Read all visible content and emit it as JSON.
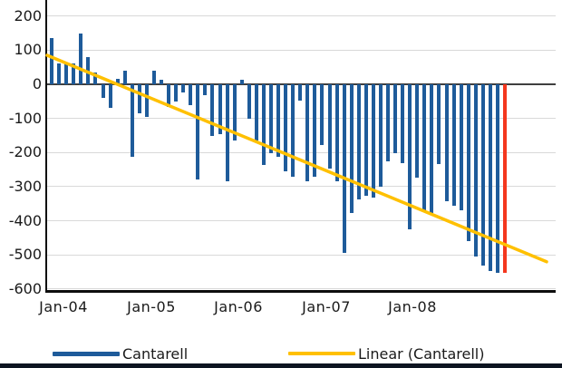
{
  "chart_data": {
    "type": "bar",
    "title": "",
    "start_month": "Jan-04",
    "frequency": "monthly",
    "series": [
      {
        "name": "Cantarell",
        "values": [
          135,
          62,
          64,
          62,
          148,
          79,
          35,
          -40,
          -70,
          15,
          40,
          -212,
          -85,
          -95,
          40,
          14,
          -66,
          -50,
          -25,
          -60,
          -278,
          -31,
          -152,
          -146,
          -285,
          -165,
          13,
          -100,
          -165,
          -235,
          -203,
          -212,
          -255,
          -270,
          -49,
          -285,
          -270,
          -177,
          -248,
          -283,
          -495,
          -376,
          -336,
          -327,
          -331,
          -300,
          -225,
          -203,
          -232,
          -424,
          -274,
          -371,
          -376,
          -234,
          -343,
          -355,
          -370,
          -460,
          -505,
          -530,
          -548,
          -552,
          -552
        ]
      }
    ],
    "highlight_index": 62,
    "trend": {
      "name": "Linear (Cantarell)",
      "start_value": 85,
      "end_value": -520
    },
    "x_tick_labels": [
      "Jan-04",
      "Jan-05",
      "Jan-06",
      "Jan-07",
      "Jan-08"
    ],
    "y_tick_labels": [
      "200",
      "100",
      "0",
      "-100",
      "-200",
      "-300",
      "-400",
      "-500",
      "-600"
    ],
    "y_ticks": [
      200,
      100,
      0,
      -100,
      -200,
      -300,
      -400,
      -500,
      -600
    ],
    "ylim": [
      -600,
      215
    ],
    "grid": true,
    "legend_position": "bottom"
  },
  "legend": {
    "items": [
      {
        "label": "Cantarell",
        "color": "#1e5b9a"
      },
      {
        "label": "Linear (Cantarell)",
        "color": "#ffc000"
      }
    ]
  },
  "colors": {
    "bar_blue": "#1e5b9a",
    "bar_red": "#f4371e",
    "trend_yellow": "#ffc000",
    "gridline": "#d9d9d9",
    "zero_line": "#3f3f3f",
    "axis": "#0d0d0d",
    "text": "#1a1a1a",
    "bottom_strip": "#0c1420"
  }
}
